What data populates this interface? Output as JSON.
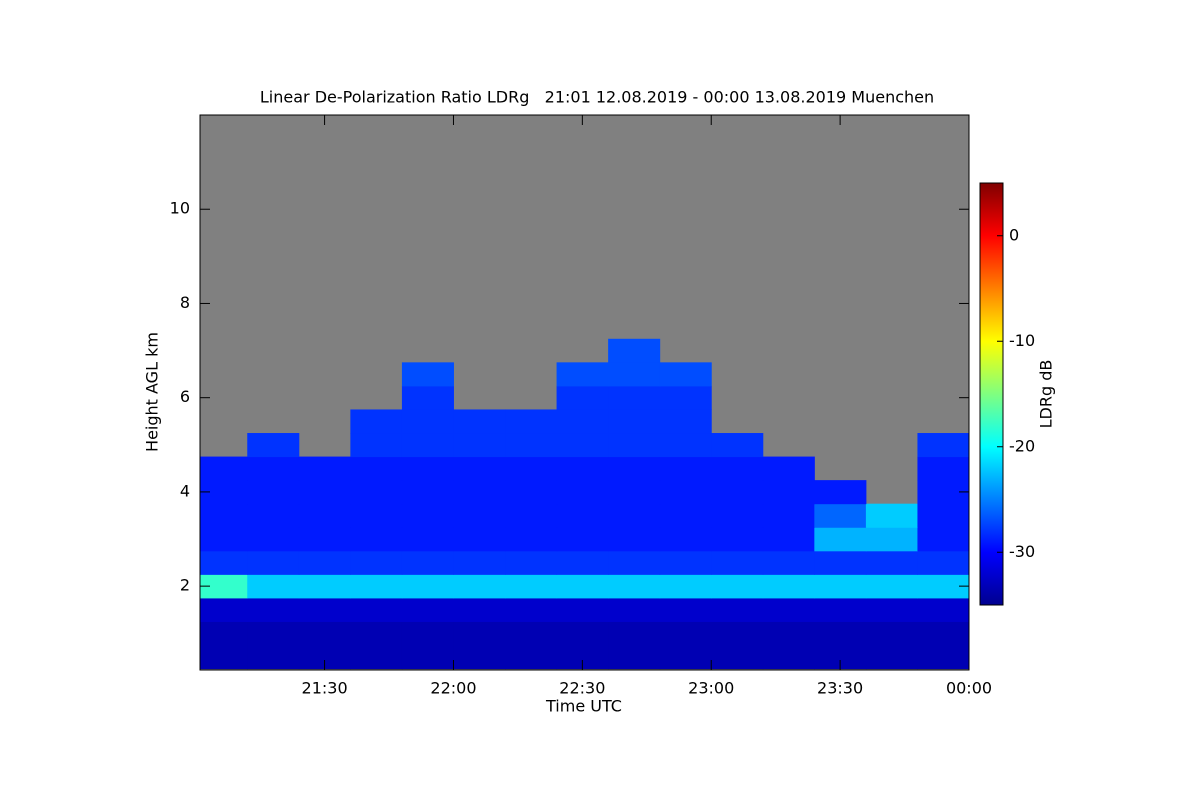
{
  "chart_data": {
    "type": "heatmap",
    "title": "Linear De-Polarization Ratio LDRg   21:01 12.08.2019 - 00:00 13.08.2019 Muenchen",
    "x_label": "Time UTC",
    "y_label": "Height AGL km",
    "colorbar_label": "LDRg dB",
    "xlim": [
      21.0167,
      24
    ],
    "xticks": [
      {
        "value": 21.5,
        "label": "21:30"
      },
      {
        "value": 22,
        "label": "22:00"
      },
      {
        "value": 22.5,
        "label": "22:30"
      },
      {
        "value": 23,
        "label": "23:00"
      },
      {
        "value": 23.5,
        "label": "23:30"
      },
      {
        "value": 24,
        "label": "00:00"
      }
    ],
    "ylim": [
      0.22,
      12
    ],
    "yticks": [
      2,
      4,
      6,
      8,
      10
    ],
    "clim": [
      -35,
      5
    ],
    "cticks": [
      0,
      -10,
      -20,
      -30
    ],
    "colormap": "jet",
    "missing_color": "#808080",
    "x": [
      21.1,
      21.3,
      21.5,
      21.7,
      21.9,
      22.1,
      22.3,
      22.5,
      22.7,
      22.9,
      23.1,
      23.3,
      23.5,
      23.7,
      23.9
    ],
    "y": [
      0.5,
      1.0,
      1.5,
      2.0,
      2.5,
      3.0,
      3.5,
      4.0,
      4.5,
      5.0,
      5.5,
      6.0,
      6.5,
      7.0,
      7.5,
      8.0,
      8.5,
      9.0,
      9.5,
      10.0,
      10.5,
      11.0,
      11.5
    ],
    "z": [
      [
        -33,
        -33,
        -33,
        -33,
        -33,
        -33,
        -33,
        -33,
        -33,
        -33,
        -33,
        -33,
        -33,
        -33,
        -33
      ],
      [
        -33,
        -33,
        -33,
        -33,
        -33,
        -33,
        -33,
        -33,
        -33,
        -33,
        -33,
        -33,
        -33,
        -33,
        -33
      ],
      [
        -32,
        -32,
        -32,
        -32,
        -32,
        -32,
        -32,
        -32,
        -32,
        -32,
        -32,
        -32,
        -32,
        -32,
        -32
      ],
      [
        -18,
        -22,
        -22,
        -22,
        -22,
        -22,
        -22,
        -22,
        -22,
        -22,
        -22,
        -22,
        -22,
        -22,
        -22
      ],
      [
        -28,
        -28,
        -28,
        -28,
        -28,
        -28,
        -28,
        -28,
        -28,
        -28,
        -28,
        -28,
        -28,
        -28,
        -28
      ],
      [
        -29,
        -29,
        -29,
        -29,
        -29,
        -29,
        -29,
        -29,
        -29,
        -29,
        -29,
        -29,
        -23,
        -23,
        -29
      ],
      [
        -29,
        -29,
        -29,
        -29,
        -29,
        -29,
        -29,
        -29,
        -29,
        -29,
        -29,
        -29,
        -26,
        -22,
        -29
      ],
      [
        -29,
        -29,
        -29,
        -29,
        -29,
        -29,
        -29,
        -29,
        -29,
        -29,
        -29,
        -29,
        -29,
        null,
        -29
      ],
      [
        -29,
        -29,
        -29,
        -29,
        -29,
        -29,
        -29,
        -29,
        -29,
        -29,
        -29,
        -29,
        null,
        null,
        -29
      ],
      [
        null,
        -28,
        null,
        -28,
        -28,
        -28,
        -28,
        -28,
        -28,
        -28,
        -28,
        null,
        null,
        null,
        -28
      ],
      [
        null,
        null,
        null,
        -28,
        -28,
        -28,
        -28,
        -28,
        -28,
        -28,
        null,
        null,
        null,
        null,
        null
      ],
      [
        null,
        null,
        null,
        null,
        -28,
        null,
        null,
        -28,
        -28,
        -28,
        null,
        null,
        null,
        null,
        null
      ],
      [
        null,
        null,
        null,
        null,
        -27,
        null,
        null,
        -27,
        -27,
        -27,
        null,
        null,
        null,
        null,
        null
      ],
      [
        null,
        null,
        null,
        null,
        null,
        null,
        null,
        null,
        -27,
        null,
        null,
        null,
        null,
        null,
        null
      ],
      [
        null,
        null,
        null,
        null,
        null,
        null,
        null,
        null,
        null,
        null,
        null,
        null,
        null,
        null,
        null
      ],
      [
        null,
        null,
        null,
        null,
        null,
        null,
        null,
        null,
        null,
        null,
        null,
        null,
        null,
        null,
        null
      ],
      [
        null,
        null,
        null,
        null,
        null,
        null,
        null,
        null,
        null,
        null,
        null,
        null,
        null,
        null,
        null
      ],
      [
        null,
        null,
        null,
        null,
        null,
        null,
        null,
        null,
        null,
        null,
        null,
        null,
        null,
        null,
        null
      ],
      [
        null,
        null,
        null,
        null,
        null,
        null,
        null,
        null,
        null,
        null,
        null,
        null,
        null,
        null,
        null
      ],
      [
        null,
        null,
        null,
        null,
        null,
        null,
        null,
        null,
        null,
        null,
        null,
        null,
        null,
        null,
        null
      ],
      [
        null,
        null,
        null,
        null,
        null,
        null,
        null,
        null,
        null,
        null,
        null,
        null,
        null,
        null,
        null
      ],
      [
        null,
        null,
        null,
        null,
        null,
        null,
        null,
        null,
        null,
        null,
        null,
        null,
        null,
        null,
        null
      ],
      [
        null,
        null,
        null,
        null,
        null,
        null,
        null,
        null,
        null,
        null,
        null,
        null,
        null,
        null,
        null
      ]
    ]
  }
}
